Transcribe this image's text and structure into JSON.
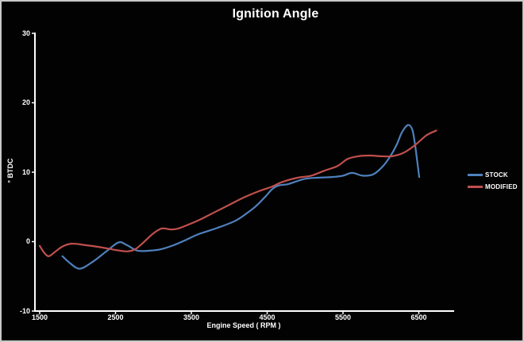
{
  "window": {
    "background": "#020202",
    "border_color": "#c9c9c9",
    "axis_color": "#ffffff",
    "text_color": "#ffffff"
  },
  "chart_data": {
    "type": "line",
    "title": "Ignition Angle",
    "xlabel": "Engine Speed ( RPM )",
    "ylabel": "° BTDC",
    "xlim": [
      1437,
      6965
    ],
    "ylim": [
      -10,
      30
    ],
    "x_ticks": [
      1500,
      2500,
      3500,
      4500,
      5500,
      6500
    ],
    "y_ticks": [
      30,
      20,
      10,
      0,
      -10
    ],
    "grid": false,
    "legend_position": "right",
    "series": [
      {
        "name": "STOCK",
        "color": "#4F81BD",
        "points": [
          [
            1800,
            -2.1
          ],
          [
            1900,
            -3.1
          ],
          [
            2030,
            -3.9
          ],
          [
            2200,
            -2.9
          ],
          [
            2380,
            -1.4
          ],
          [
            2540,
            -0.1
          ],
          [
            2650,
            -0.5
          ],
          [
            2790,
            -1.3
          ],
          [
            2950,
            -1.3
          ],
          [
            3100,
            -1.1
          ],
          [
            3270,
            -0.5
          ],
          [
            3420,
            0.2
          ],
          [
            3600,
            1.1
          ],
          [
            3850,
            2.0
          ],
          [
            4080,
            3.0
          ],
          [
            4220,
            4.0
          ],
          [
            4350,
            5.1
          ],
          [
            4470,
            6.4
          ],
          [
            4570,
            7.6
          ],
          [
            4660,
            8.1
          ],
          [
            4780,
            8.3
          ],
          [
            4980,
            9.0
          ],
          [
            5150,
            9.2
          ],
          [
            5350,
            9.3
          ],
          [
            5500,
            9.5
          ],
          [
            5620,
            9.9
          ],
          [
            5760,
            9.5
          ],
          [
            5900,
            9.7
          ],
          [
            6030,
            10.9
          ],
          [
            6130,
            12.4
          ],
          [
            6210,
            14.0
          ],
          [
            6280,
            15.8
          ],
          [
            6360,
            16.8
          ],
          [
            6415,
            16.1
          ],
          [
            6450,
            14.0
          ],
          [
            6480,
            11.5
          ],
          [
            6505,
            9.3
          ]
        ]
      },
      {
        "name": "MODIFIED",
        "color": "#C0504D",
        "points": [
          [
            1500,
            -0.6
          ],
          [
            1560,
            -1.6
          ],
          [
            1620,
            -2.1
          ],
          [
            1700,
            -1.5
          ],
          [
            1800,
            -0.7
          ],
          [
            1920,
            -0.3
          ],
          [
            2100,
            -0.5
          ],
          [
            2300,
            -0.8
          ],
          [
            2500,
            -1.2
          ],
          [
            2650,
            -1.4
          ],
          [
            2760,
            -1.1
          ],
          [
            2870,
            -0.1
          ],
          [
            3000,
            1.2
          ],
          [
            3110,
            1.9
          ],
          [
            3230,
            1.75
          ],
          [
            3330,
            1.9
          ],
          [
            3450,
            2.4
          ],
          [
            3600,
            3.1
          ],
          [
            3800,
            4.2
          ],
          [
            4000,
            5.3
          ],
          [
            4200,
            6.4
          ],
          [
            4400,
            7.3
          ],
          [
            4560,
            7.9
          ],
          [
            4700,
            8.6
          ],
          [
            4900,
            9.2
          ],
          [
            5080,
            9.5
          ],
          [
            5250,
            10.2
          ],
          [
            5430,
            10.9
          ],
          [
            5560,
            11.9
          ],
          [
            5700,
            12.3
          ],
          [
            5850,
            12.4
          ],
          [
            6000,
            12.3
          ],
          [
            6150,
            12.3
          ],
          [
            6300,
            12.8
          ],
          [
            6450,
            13.9
          ],
          [
            6600,
            15.3
          ],
          [
            6730,
            16.0
          ]
        ]
      }
    ]
  }
}
